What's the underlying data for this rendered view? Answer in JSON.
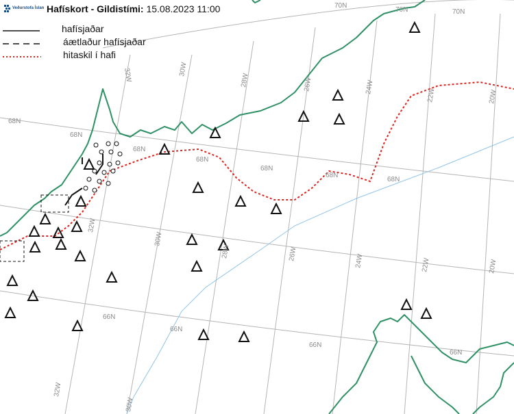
{
  "header": {
    "logo_text": "Veðurstofa Íslands",
    "title_bold": "Hafískort - Gildistími:",
    "title_date": " 15.08.2023 11:00"
  },
  "legend": {
    "items": [
      {
        "style": "solid",
        "label": "hafísjaðar"
      },
      {
        "style": "dashed",
        "label": "áætlaður hafísjaðar"
      },
      {
        "style": "dotted-red",
        "label": "hitaskil í hafi"
      }
    ]
  },
  "grid_labels": {
    "lat_68": [
      "68N",
      "68N",
      "68N",
      "68N",
      "68N",
      "68N",
      "68N"
    ],
    "lat_70": [
      "70N",
      "70N",
      "70N"
    ],
    "lat_66": [
      "66N",
      "66N",
      "66N",
      "66N"
    ],
    "lon": [
      "32W",
      "30W",
      "28W",
      "26W",
      "24W",
      "22W",
      "20W",
      "32W",
      "30W",
      "28W",
      "26W",
      "24W",
      "22W",
      "20W",
      "32W",
      "30W"
    ]
  },
  "colors": {
    "coast": "#2e9065",
    "front": "#e0201b",
    "grid": "#b4b4b4",
    "boundary": "#8ec3e8"
  }
}
